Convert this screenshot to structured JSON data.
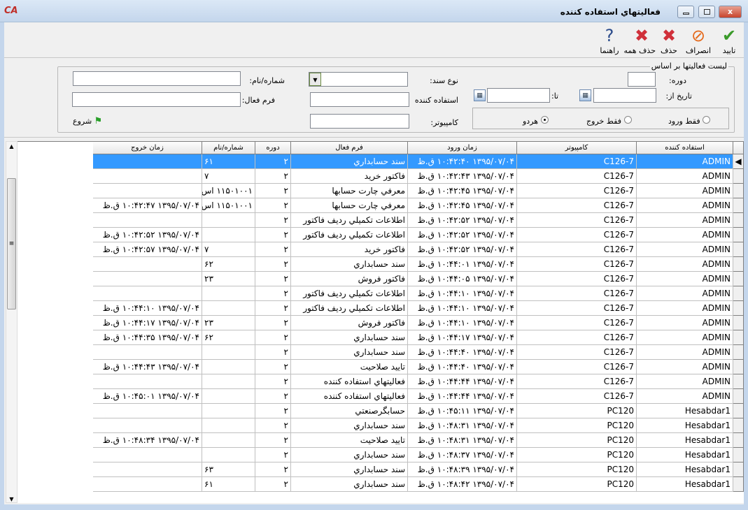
{
  "window": {
    "title": "فعاليتهاي استفاده كننده",
    "app_logo": "CA",
    "close": "x"
  },
  "toolbar": [
    {
      "label": "تایید",
      "icon": "check-icon",
      "color": "#3a9a2a"
    },
    {
      "label": "انصراف",
      "icon": "cancel-icon",
      "color": "#e56a1c"
    },
    {
      "label": "حذف",
      "icon": "delete-icon",
      "color": "#d0303a"
    },
    {
      "label": "حذف همه",
      "icon": "delete-all-icon",
      "color": "#d0303a"
    },
    {
      "label": "راهنما",
      "icon": "help-icon",
      "color": "#2a4a8a"
    }
  ],
  "filter": {
    "group_title": "لیست فعالیتها بر اساس",
    "period_label": "دوره:",
    "date_from_label": "تاریخ از:",
    "date_to_label": "تا:",
    "doc_type_label": "نوع سند:",
    "user_label": "استفاده کننده",
    "computer_label": "کامپیوتر:",
    "number_label": "شماره/نام:",
    "form_label": "فرم فعال:",
    "start_label": "شروع",
    "radios": [
      {
        "label": "فقط ورود",
        "checked": false
      },
      {
        "label": "فقط خروج",
        "checked": false
      },
      {
        "label": "هردو",
        "checked": true
      }
    ]
  },
  "grid": {
    "columns": [
      "استفاده کننده",
      "کامپیوتر",
      "زمان ورود",
      "فرم فعال",
      "دوره",
      "شماره/نام",
      "زمان خروج"
    ],
    "selected_row": 0,
    "rows": [
      [
        "ADMIN",
        "C126-7",
        "۱۳۹۵/۰۷/۰۴ ۱۰:۴۲:۴۰ ق.ظ",
        "سند حسابداري",
        "۲",
        "۶۱",
        ""
      ],
      [
        "ADMIN",
        "C126-7",
        "۱۳۹۵/۰۷/۰۴ ۱۰:۴۲:۴۳ ق.ظ",
        "فاكتور خريد",
        "۲",
        "۷",
        ""
      ],
      [
        "ADMIN",
        "C126-7",
        "۱۳۹۵/۰۷/۰۴ ۱۰:۴۲:۴۵ ق.ظ",
        "معرفي چارت حسابها",
        "۲",
        "۱۱۵۰۱۰۰۱ اس",
        ""
      ],
      [
        "ADMIN",
        "C126-7",
        "۱۳۹۵/۰۷/۰۴ ۱۰:۴۲:۴۵ ق.ظ",
        "معرفي چارت حسابها",
        "۲",
        "۱۱۵۰۱۰۰۱ اس",
        "۱۳۹۵/۰۷/۰۴ ۱۰:۴۲:۴۷ ق.ظ"
      ],
      [
        "ADMIN",
        "C126-7",
        "۱۳۹۵/۰۷/۰۴ ۱۰:۴۲:۵۲ ق.ظ",
        "اطلاعات تكميلي رديف فاكتور",
        "۲",
        "",
        ""
      ],
      [
        "ADMIN",
        "C126-7",
        "۱۳۹۵/۰۷/۰۴ ۱۰:۴۲:۵۲ ق.ظ",
        "اطلاعات تكميلي رديف فاكتور",
        "۲",
        "",
        "۱۳۹۵/۰۷/۰۴ ۱۰:۴۲:۵۲ ق.ظ"
      ],
      [
        "ADMIN",
        "C126-7",
        "۱۳۹۵/۰۷/۰۴ ۱۰:۴۲:۵۲ ق.ظ",
        "فاكتور خريد",
        "۲",
        "۷",
        "۱۳۹۵/۰۷/۰۴ ۱۰:۴۲:۵۷ ق.ظ"
      ],
      [
        "ADMIN",
        "C126-7",
        "۱۳۹۵/۰۷/۰۴ ۱۰:۴۴:۰۱ ق.ظ",
        "سند حسابداري",
        "۲",
        "۶۲",
        ""
      ],
      [
        "ADMIN",
        "C126-7",
        "۱۳۹۵/۰۷/۰۴ ۱۰:۴۴:۰۵ ق.ظ",
        "فاكتور فروش",
        "۲",
        "۲۳",
        ""
      ],
      [
        "ADMIN",
        "C126-7",
        "۱۳۹۵/۰۷/۰۴ ۱۰:۴۴:۱۰ ق.ظ",
        "اطلاعات تكميلي رديف فاكتور",
        "۲",
        "",
        ""
      ],
      [
        "ADMIN",
        "C126-7",
        "۱۳۹۵/۰۷/۰۴ ۱۰:۴۴:۱۰ ق.ظ",
        "اطلاعات تكميلي رديف فاكتور",
        "۲",
        "",
        "۱۳۹۵/۰۷/۰۴ ۱۰:۴۴:۱۰ ق.ظ"
      ],
      [
        "ADMIN",
        "C126-7",
        "۱۳۹۵/۰۷/۰۴ ۱۰:۴۴:۱۰ ق.ظ",
        "فاكتور فروش",
        "۲",
        "۲۳",
        "۱۳۹۵/۰۷/۰۴ ۱۰:۴۴:۱۷ ق.ظ"
      ],
      [
        "ADMIN",
        "C126-7",
        "۱۳۹۵/۰۷/۰۴ ۱۰:۴۴:۱۷ ق.ظ",
        "سند حسابداري",
        "۲",
        "۶۲",
        "۱۳۹۵/۰۷/۰۴ ۱۰:۴۴:۳۵ ق.ظ"
      ],
      [
        "ADMIN",
        "C126-7",
        "۱۳۹۵/۰۷/۰۴ ۱۰:۴۴:۴۰ ق.ظ",
        "سند حسابداري",
        "۲",
        "",
        ""
      ],
      [
        "ADMIN",
        "C126-7",
        "۱۳۹۵/۰۷/۰۴ ۱۰:۴۴:۴۰ ق.ظ",
        "تاييد صلاحيت",
        "۲",
        "",
        "۱۳۹۵/۰۷/۰۴ ۱۰:۴۴:۴۳ ق.ظ"
      ],
      [
        "ADMIN",
        "C126-7",
        "۱۳۹۵/۰۷/۰۴ ۱۰:۴۴:۴۴ ق.ظ",
        "فعاليتهاي استفاده كننده",
        "۲",
        "",
        ""
      ],
      [
        "ADMIN",
        "C126-7",
        "۱۳۹۵/۰۷/۰۴ ۱۰:۴۴:۴۴ ق.ظ",
        "فعاليتهاي استفاده كننده",
        "۲",
        "",
        "۱۳۹۵/۰۷/۰۴ ۱۰:۴۵:۰۱ ق.ظ"
      ],
      [
        "Hesabdar1",
        "PC120",
        "۱۳۹۵/۰۷/۰۴ ۱۰:۴۵:۱۱ ق.ظ",
        "حسابگرصنعتي",
        "۲",
        "",
        ""
      ],
      [
        "Hesabdar1",
        "PC120",
        "۱۳۹۵/۰۷/۰۴ ۱۰:۴۸:۳۱ ق.ظ",
        "سند حسابداري",
        "۲",
        "",
        ""
      ],
      [
        "Hesabdar1",
        "PC120",
        "۱۳۹۵/۰۷/۰۴ ۱۰:۴۸:۳۱ ق.ظ",
        "تاييد صلاحيت",
        "۲",
        "",
        "۱۳۹۵/۰۷/۰۴ ۱۰:۴۸:۳۴ ق.ظ"
      ],
      [
        "Hesabdar1",
        "PC120",
        "۱۳۹۵/۰۷/۰۴ ۱۰:۴۸:۳۷ ق.ظ",
        "سند حسابداري",
        "۲",
        "",
        ""
      ],
      [
        "Hesabdar1",
        "PC120",
        "۱۳۹۵/۰۷/۰۴ ۱۰:۴۸:۳۹ ق.ظ",
        "سند حسابداري",
        "۲",
        "۶۳",
        ""
      ],
      [
        "Hesabdar1",
        "PC120",
        "۱۳۹۵/۰۷/۰۴ ۱۰:۴۸:۴۲ ق.ظ",
        "سند حسابداري",
        "۲",
        "۶۱",
        ""
      ]
    ]
  }
}
